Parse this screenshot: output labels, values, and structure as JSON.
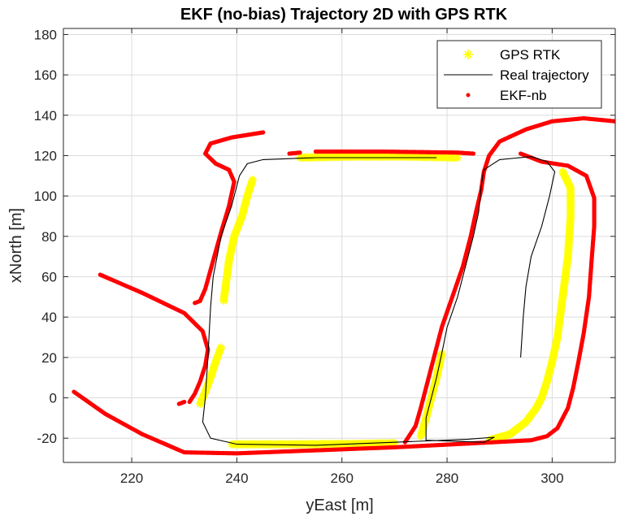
{
  "chart_data": {
    "type": "scatter",
    "title": "EKF (no-bias) Trajectory 2D with GPS RTK",
    "xlabel": "yEast [m]",
    "ylabel": "xNorth [m]",
    "xlim": [
      207,
      312
    ],
    "ylim": [
      -32,
      183
    ],
    "xticks": [
      220,
      240,
      260,
      280,
      300
    ],
    "yticks": [
      -20,
      0,
      20,
      40,
      60,
      80,
      100,
      120,
      140,
      160,
      180
    ],
    "xtick_labels": [
      "220",
      "240",
      "260",
      "280",
      "300"
    ],
    "ytick_labels": [
      "-20",
      "0",
      "20",
      "40",
      "60",
      "80",
      "100",
      "120",
      "140",
      "160",
      "180"
    ],
    "grid": true,
    "legend_position": "top-right",
    "colors": {
      "gps": "#ffff00",
      "real": "#000000",
      "ekf": "#ff0000",
      "grid": "#dcdcdc",
      "axis": "#262626"
    },
    "series": [
      {
        "name": "GPS RTK",
        "marker": "asterisk",
        "segments": [
          [
            [
              243,
              108
            ],
            [
              242,
              100
            ],
            [
              241,
              90
            ],
            [
              239.5,
              80
            ],
            [
              238.5,
              68
            ],
            [
              238,
              58
            ],
            [
              237.5,
              48
            ]
          ],
          [
            [
              237,
              25
            ],
            [
              236,
              18
            ],
            [
              235,
              10
            ],
            [
              234,
              3
            ],
            [
              233,
              -3
            ]
          ],
          [
            [
              239,
              -23
            ],
            [
              250,
              -23
            ],
            [
              262,
              -22.8
            ],
            [
              270,
              -22.5
            ]
          ],
          [
            [
              252,
              119
            ],
            [
              262,
              119.5
            ],
            [
              272,
              119.5
            ],
            [
              282,
              119
            ]
          ],
          [
            [
              275,
              -19
            ],
            [
              276,
              -10
            ],
            [
              277,
              0
            ],
            [
              278,
              10
            ],
            [
              279,
              22
            ]
          ],
          [
            [
              288,
              -21
            ],
            [
              292,
              -18
            ],
            [
              295,
              -12
            ],
            [
              297,
              -5
            ],
            [
              298,
              0
            ],
            [
              299,
              8
            ],
            [
              300,
              18
            ],
            [
              301,
              30
            ],
            [
              302,
              50
            ],
            [
              303,
              70
            ],
            [
              303.5,
              90
            ],
            [
              303.5,
              104
            ],
            [
              302,
              112
            ]
          ]
        ]
      },
      {
        "name": "Real trajectory",
        "line": true,
        "points": [
          [
            278,
            119
          ],
          [
            255,
            119
          ],
          [
            245,
            118
          ],
          [
            242,
            116
          ],
          [
            240.5,
            110
          ],
          [
            239,
            95
          ],
          [
            237,
            80
          ],
          [
            235.5,
            60
          ],
          [
            235,
            45
          ],
          [
            234.5,
            20
          ],
          [
            234,
            0
          ],
          [
            233.5,
            -12
          ],
          [
            235,
            -20
          ],
          [
            240,
            -23
          ],
          [
            255,
            -23.5
          ],
          [
            270,
            -22
          ],
          [
            284,
            -20.5
          ],
          [
            289,
            -19.5
          ],
          [
            287,
            -22
          ],
          [
            276,
            -21
          ],
          [
            276,
            -10
          ],
          [
            277,
            0
          ],
          [
            278,
            10
          ],
          [
            279,
            22
          ],
          [
            280,
            35
          ],
          [
            282,
            50
          ],
          [
            283.5,
            65
          ],
          [
            285,
            80
          ],
          [
            286,
            92
          ],
          [
            286.5,
            105
          ],
          [
            287,
            113
          ],
          [
            290,
            118
          ],
          [
            296,
            119.5
          ],
          [
            299,
            117
          ],
          [
            300.5,
            112
          ],
          [
            299.5,
            100
          ],
          [
            298,
            85
          ],
          [
            296,
            70
          ],
          [
            295,
            55
          ],
          [
            294.5,
            40
          ],
          [
            294,
            20
          ]
        ]
      },
      {
        "name": "EKF-nb",
        "marker": "dot",
        "segments": [
          [
            [
              245,
              131.5
            ],
            [
              239,
              129
            ],
            [
              235,
              126
            ],
            [
              234,
              121
            ],
            [
              236,
              116
            ],
            [
              238.5,
              113
            ],
            [
              239.5,
              107
            ],
            [
              238.5,
              95
            ],
            [
              237,
              82
            ],
            [
              235.5,
              68
            ],
            [
              234,
              54
            ],
            [
              233,
              48
            ]
          ],
          [
            [
              232,
              47
            ],
            [
              233,
              48
            ]
          ],
          [
            [
              214,
              61
            ],
            [
              222,
              52
            ],
            [
              230,
              42
            ],
            [
              233.5,
              33
            ],
            [
              234.5,
              24
            ],
            [
              234,
              16
            ],
            [
              233,
              8
            ],
            [
              232,
              2
            ],
            [
              231,
              -2
            ]
          ],
          [
            [
              229,
              -3
            ],
            [
              230,
              -2
            ]
          ],
          [
            [
              209,
              3
            ],
            [
              215,
              -8
            ],
            [
              222,
              -18
            ],
            [
              230,
              -27
            ],
            [
              240,
              -27.5
            ],
            [
              255,
              -26
            ],
            [
              270,
              -24.5
            ],
            [
              285,
              -22.5
            ],
            [
              296,
              -21
            ],
            [
              299,
              -19
            ],
            [
              301,
              -15
            ],
            [
              303,
              -5
            ],
            [
              304,
              5
            ],
            [
              305,
              18
            ],
            [
              306,
              32
            ],
            [
              307,
              50
            ],
            [
              307.5,
              68
            ],
            [
              308,
              85
            ],
            [
              308,
              99
            ],
            [
              306.5,
              110
            ],
            [
              303,
              115
            ],
            [
              298,
              117
            ],
            [
              294,
              121
            ]
          ],
          [
            [
              250,
              121
            ],
            [
              252,
              121.5
            ]
          ],
          [
            [
              255,
              122
            ],
            [
              268,
              122
            ],
            [
              282,
              121.5
            ],
            [
              285,
              121
            ]
          ],
          [
            [
              272,
              -22
            ],
            [
              274,
              -14
            ],
            [
              275,
              -5
            ],
            [
              276,
              5
            ],
            [
              277.5,
              20
            ],
            [
              279,
              35
            ],
            [
              281,
              50
            ],
            [
              283,
              65
            ],
            [
              284.5,
              80
            ],
            [
              285.5,
              92
            ],
            [
              286.5,
              103
            ],
            [
              287,
              112
            ],
            [
              288,
              120
            ],
            [
              290,
              127
            ],
            [
              295,
              133
            ],
            [
              300,
              137
            ],
            [
              306,
              138.5
            ],
            [
              312,
              137
            ],
            [
              316,
              135
            ]
          ]
        ]
      }
    ]
  }
}
